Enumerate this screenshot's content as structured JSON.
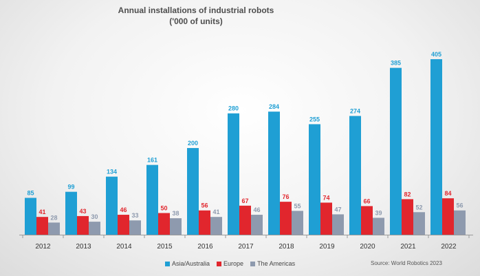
{
  "chart_data": {
    "type": "bar",
    "title": "Annual installations of industrial robots",
    "subtitle": "('000 of units)",
    "categories": [
      "2012",
      "2013",
      "2014",
      "2015",
      "2016",
      "2017",
      "2018",
      "2019",
      "2020",
      "2021",
      "2022"
    ],
    "series": [
      {
        "name": "Asia/Australia",
        "color": "#1f9fd4",
        "values": [
          85,
          99,
          134,
          161,
          200,
          280,
          284,
          255,
          274,
          385,
          405
        ]
      },
      {
        "name": "Europe",
        "color": "#e1262d",
        "values": [
          41,
          43,
          46,
          50,
          56,
          67,
          76,
          74,
          66,
          82,
          84
        ]
      },
      {
        "name": "The Americas",
        "color": "#8e9aae",
        "values": [
          28,
          30,
          33,
          38,
          41,
          46,
          55,
          47,
          39,
          52,
          56
        ]
      }
    ],
    "ylim": [
      0,
      420
    ],
    "grid": false,
    "data_labels": true,
    "legend_position": "bottom",
    "source": "Source: World Robotics 2023"
  }
}
